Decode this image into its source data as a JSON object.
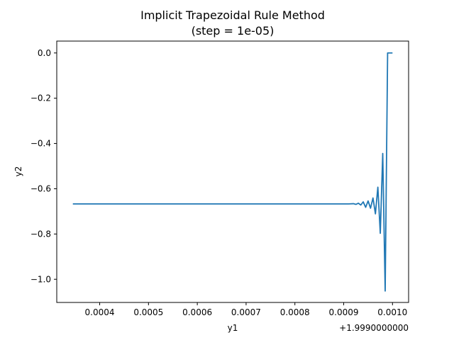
{
  "chart_data": {
    "type": "line",
    "title": "Implicit Trapezoidal Rule Method",
    "subtitle": "(step = 1e-05)",
    "xlabel": "y1",
    "ylabel": "y2",
    "x_offset_label": "+1.9990000000",
    "x_offset": 1.999,
    "xlim": [
      0.000312,
      0.001033
    ],
    "ylim": [
      -1.1025,
      0.0525
    ],
    "x_ticks": [
      0.0004,
      0.0005,
      0.0006,
      0.0007,
      0.0008,
      0.0009,
      0.001
    ],
    "x_tick_labels": [
      "0.0004",
      "0.0005",
      "0.0006",
      "0.0007",
      "0.0008",
      "0.0009",
      "0.0010"
    ],
    "y_ticks": [
      0.0,
      -0.2,
      -0.4,
      -0.6,
      -0.8,
      -1.0
    ],
    "y_tick_labels": [
      "0.0",
      "−0.2",
      "−0.4",
      "−0.6",
      "−0.8",
      "−1.0"
    ],
    "grid": false,
    "line_color": "#1f77b4",
    "series": [
      {
        "x": [
          0.000345,
          0.0009,
          0.00092,
          0.00093,
          0.00094,
          0.00095,
          0.00096,
          0.00097,
          0.00098,
          0.00099,
          0.001
        ],
        "y": [
          -0.667,
          -0.667,
          -0.666,
          -0.669,
          -0.66,
          -0.68,
          -0.64,
          -0.71,
          -0.59,
          -0.8,
          0.0
        ],
        "dense_tail": {
          "x": [
            0.000345,
            0.0009,
            0.00091,
            0.00092,
            0.000925,
            0.00093,
            0.000935,
            0.00094,
            0.000945,
            0.00095,
            0.000955,
            0.00096,
            0.000965,
            0.00097,
            0.000975,
            0.00098,
            0.000985,
            0.00099,
            0.000995,
            0.001
          ],
          "y": [
            -0.667,
            -0.667,
            -0.667,
            -0.666,
            -0.669,
            -0.664,
            -0.672,
            -0.658,
            -0.682,
            -0.654,
            -0.686,
            -0.641,
            -0.711,
            -0.593,
            -0.797,
            -0.444,
            -1.052,
            0.0,
            0.0,
            0.0
          ]
        }
      }
    ]
  }
}
